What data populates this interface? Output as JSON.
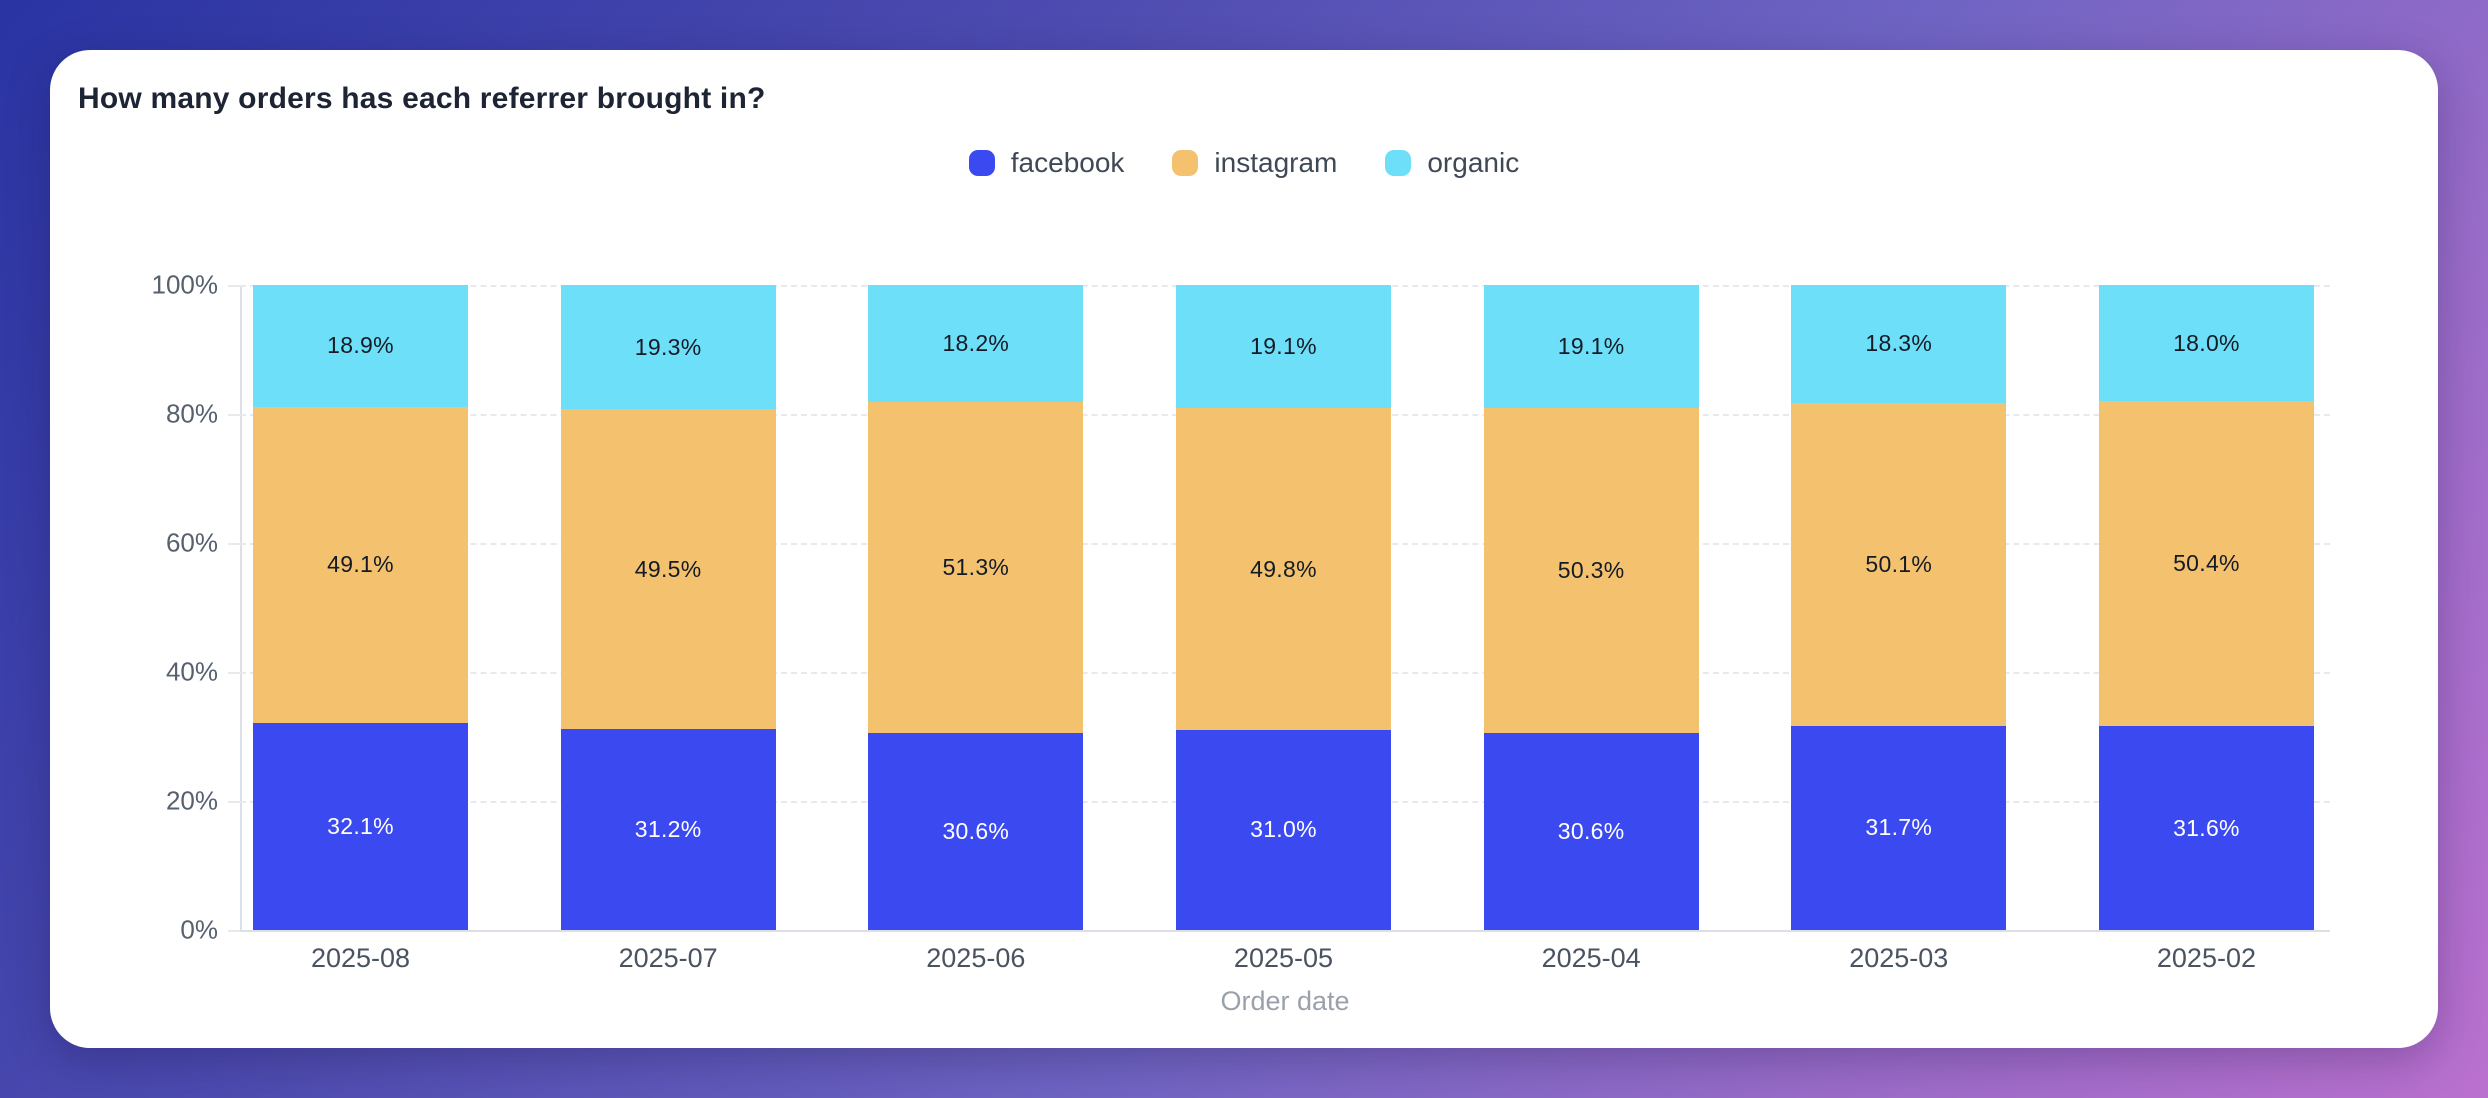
{
  "card": {
    "title": "How many orders has each referrer brought in?"
  },
  "colors": {
    "background_gradient": [
      "#2a34a3",
      "#6f64c3",
      "#ba70cf"
    ],
    "card_background": "#ffffff",
    "gridline": "#e7e9ef",
    "axis_line": "#dcdfe6"
  },
  "chart_data": {
    "type": "bar",
    "stacked": true,
    "title": "How many orders has each referrer brought in?",
    "xlabel": "Order date",
    "ylabel": "",
    "ylim": [
      0,
      100
    ],
    "y_tick_labels": [
      "100%",
      "80%",
      "60%",
      "40%",
      "20%",
      "0%"
    ],
    "grid": "dashed-horizontal",
    "legend_position": "top-center",
    "categories": [
      "2025-08",
      "2025-07",
      "2025-06",
      "2025-05",
      "2025-04",
      "2025-03",
      "2025-02"
    ],
    "series": [
      {
        "name": "facebook",
        "color": "#3b4af0",
        "label_color": "#ffffff",
        "values": [
          32.1,
          31.2,
          30.6,
          31.0,
          30.6,
          31.7,
          31.6
        ],
        "labels": [
          "32.1%",
          "31.2%",
          "30.6%",
          "31.0%",
          "30.6%",
          "31.7%",
          "31.6%"
        ]
      },
      {
        "name": "instagram",
        "color": "#f4c26e",
        "label_color": "#141b26",
        "values": [
          49.1,
          49.5,
          51.3,
          49.8,
          50.3,
          50.1,
          50.4
        ],
        "labels": [
          "49.1%",
          "49.5%",
          "51.3%",
          "49.8%",
          "50.3%",
          "50.1%",
          "50.4%"
        ]
      },
      {
        "name": "organic",
        "color": "#6ddff9",
        "label_color": "#141b26",
        "values": [
          18.9,
          19.3,
          18.2,
          19.1,
          19.1,
          18.3,
          18.0
        ],
        "labels": [
          "18.9%",
          "19.3%",
          "18.2%",
          "19.1%",
          "19.1%",
          "18.3%",
          "18.0%"
        ]
      }
    ]
  }
}
